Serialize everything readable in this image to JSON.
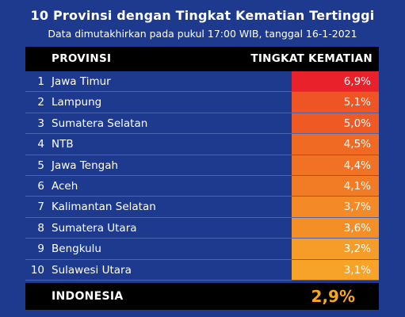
{
  "title": "10 Provinsi dengan Tingkat Kematian Tertinggi",
  "subtitle": "Data dimutakhirkan pada pukul 17:00 WIB, tanggal 16-1-2021",
  "header": {
    "province": "PROVINSI",
    "rate": "TINGKAT KEMATIAN"
  },
  "chart_data": {
    "type": "table",
    "columns": [
      "PROVINSI",
      "TINGKAT KEMATIAN"
    ],
    "rows": [
      {
        "rank": "1",
        "province": "Jawa Timur",
        "rate": "6,9%",
        "value": 6.9,
        "color": "#e8212b"
      },
      {
        "rank": "2",
        "province": "Lampung",
        "rate": "5,1%",
        "value": 5.1,
        "color": "#ee5424"
      },
      {
        "rank": "3",
        "province": "Sumatera Selatan",
        "rate": "5,0%",
        "value": 5.0,
        "color": "#ef5a24"
      },
      {
        "rank": "4",
        "province": "NTB",
        "rate": "4,5%",
        "value": 4.5,
        "color": "#f06a24"
      },
      {
        "rank": "5",
        "province": "Jawa Tengah",
        "rate": "4,4%",
        "value": 4.4,
        "color": "#f17225"
      },
      {
        "rank": "6",
        "province": "Aceh",
        "rate": "4,1%",
        "value": 4.1,
        "color": "#f27c25"
      },
      {
        "rank": "7",
        "province": "Kalimantan Selatan",
        "rate": "3,7%",
        "value": 3.7,
        "color": "#f48a27"
      },
      {
        "rank": "8",
        "province": "Sumatera Utara",
        "rate": "3,6%",
        "value": 3.6,
        "color": "#f48f27"
      },
      {
        "rank": "9",
        "province": "Bengkulu",
        "rate": "3,2%",
        "value": 3.2,
        "color": "#f69c28"
      },
      {
        "rank": "10",
        "province": "Sulawesi Utara",
        "rate": "3,1%",
        "value": 3.1,
        "color": "#f7a229"
      }
    ]
  },
  "footer": {
    "label": "INDONESIA",
    "value": "2,9%",
    "value_color": "#f7a81b"
  }
}
